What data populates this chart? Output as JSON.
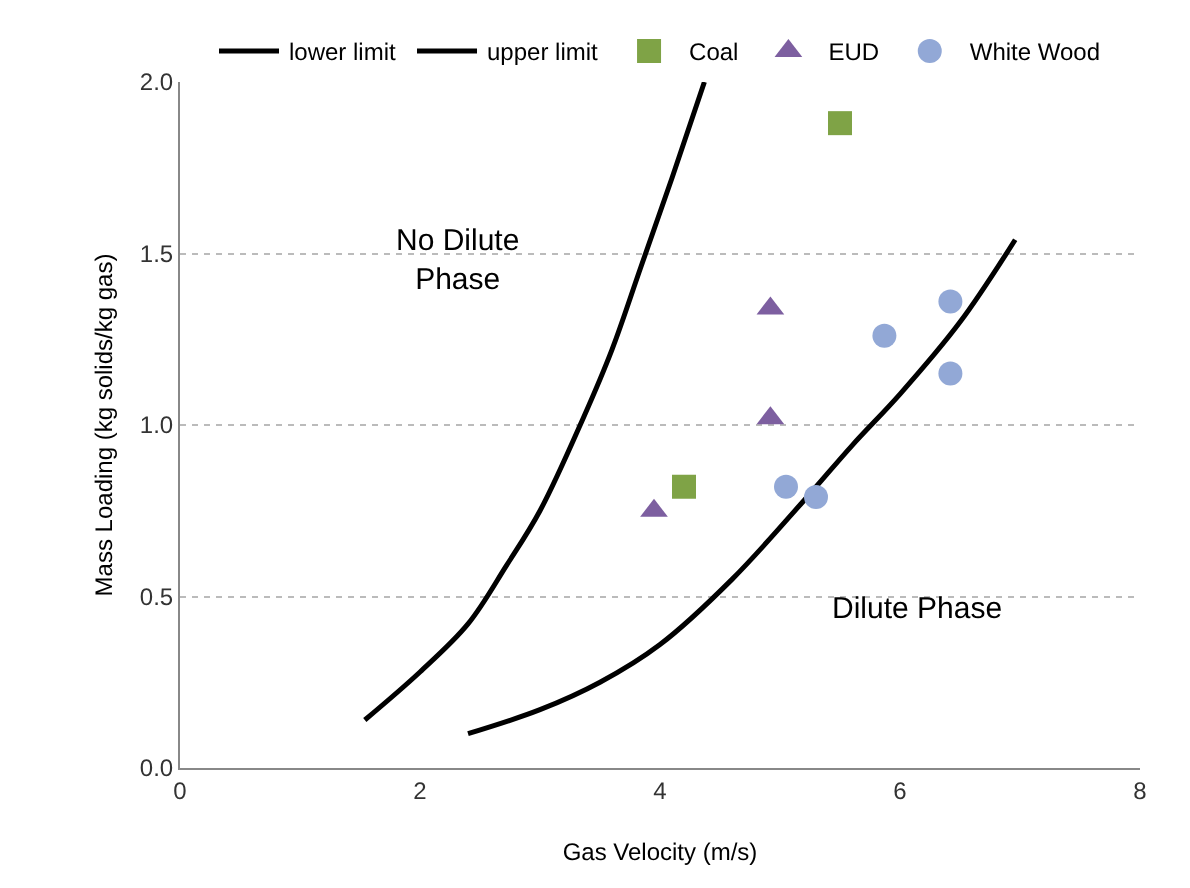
{
  "chart_data": {
    "type": "scatter",
    "xlabel": "Gas Velocity (m/s)",
    "ylabel": "Mass Loading (kg solids/kg gas)",
    "xlim": [
      0,
      8
    ],
    "xticks": [
      0,
      2,
      4,
      6,
      8
    ],
    "ylim": [
      0,
      2
    ],
    "yticks": [
      {
        "value": 0,
        "label": "0.0"
      },
      {
        "value": 0.5,
        "label": "0.5"
      },
      {
        "value": 1,
        "label": "1.0"
      },
      {
        "value": 1.5,
        "label": "1.5"
      },
      {
        "value": 2,
        "label": "2.0"
      }
    ],
    "grid": "y",
    "legend": "top",
    "series": [
      {
        "name": "lower limit",
        "type": "line",
        "color": "#000000",
        "x": [
          1.54,
          2.0,
          2.4,
          2.72,
          3.0,
          3.36,
          3.6,
          3.84,
          4.1,
          4.37
        ],
        "values": [
          0.14,
          0.28,
          0.42,
          0.59,
          0.75,
          1.02,
          1.22,
          1.46,
          1.72,
          2.0
        ]
      },
      {
        "name": "upper limit",
        "type": "line",
        "color": "#000000",
        "x": [
          2.4,
          3.0,
          3.5,
          4.0,
          4.6,
          5.2,
          5.6,
          6.0,
          6.5,
          6.96
        ],
        "values": [
          0.1,
          0.17,
          0.25,
          0.36,
          0.55,
          0.78,
          0.94,
          1.09,
          1.3,
          1.54
        ]
      },
      {
        "name": "Coal",
        "marker": "square",
        "color": "#7fa346",
        "x": [
          4.2,
          5.5
        ],
        "values": [
          0.82,
          1.88
        ]
      },
      {
        "name": "EUD",
        "marker": "triangle",
        "color": "#7d5fa0",
        "x": [
          3.95,
          4.92,
          4.92
        ],
        "values": [
          0.75,
          1.34,
          1.02
        ]
      },
      {
        "name": "White Wood",
        "marker": "circle",
        "color": "#92a8d6",
        "x": [
          5.05,
          5.3,
          5.87,
          6.42,
          6.42
        ],
        "values": [
          0.82,
          0.79,
          1.26,
          1.36,
          1.15
        ]
      }
    ],
    "annotations": [
      "No Dilute Phase",
      "Dilute Phase"
    ]
  }
}
